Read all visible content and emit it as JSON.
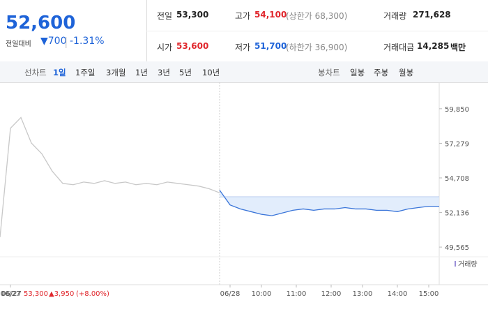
{
  "header": {
    "price": "52,600",
    "change_label": "전일대비",
    "change": "▼700",
    "change_pct": "-1.31%",
    "stats": [
      [
        "전일",
        "53,300",
        ""
      ],
      [
        "고가",
        "54,100",
        "(상한가 68,300)"
      ],
      [
        "거래량",
        "271,628",
        ""
      ],
      [
        "시가",
        "53,600",
        ""
      ],
      [
        "저가",
        "51,700",
        "(하한가 36,900)"
      ],
      [
        "거래대금",
        "14,285",
        "백만"
      ]
    ]
  },
  "tabs": {
    "line_label": "선차트",
    "line_tabs": [
      "1일",
      "1주일",
      "3개월",
      "1년",
      "3년",
      "5년",
      "10년"
    ],
    "candle_label": "봉차트",
    "candle_tabs": [
      "일봉",
      "주봉",
      "월봉"
    ]
  },
  "chart_data": {
    "type": "line",
    "x": [
      0,
      3,
      6,
      9,
      12,
      15,
      18,
      21,
      24,
      27,
      30,
      33,
      36,
      39,
      42,
      45,
      48,
      51,
      54,
      57,
      60,
      63,
      66,
      69,
      72,
      75,
      78,
      81,
      84,
      87,
      90,
      93,
      96,
      99,
      102,
      105,
      108,
      111,
      114,
      117,
      120,
      123,
      126
    ],
    "series": [
      {
        "name": "06/27",
        "color": "#c8c8c8",
        "values": [
          50300,
          58400,
          59200,
          57300,
          56500,
          55200,
          54300,
          54200,
          54400,
          54300,
          54500,
          54300,
          54400,
          54200,
          54300,
          54200,
          54400,
          54300,
          54200,
          54100,
          53900,
          53600,
          null,
          null,
          null,
          null,
          null,
          null,
          null,
          null,
          null,
          null,
          null,
          null,
          null,
          null,
          null,
          null,
          null,
          null,
          null,
          null,
          null
        ]
      },
      {
        "name": "06/28",
        "color": "#3a75d9",
        "values": [
          null,
          null,
          null,
          null,
          null,
          null,
          null,
          null,
          null,
          null,
          null,
          null,
          null,
          null,
          null,
          null,
          null,
          null,
          null,
          null,
          null,
          53800,
          52700,
          52400,
          52200,
          52000,
          51900,
          52100,
          52300,
          52400,
          52300,
          52400,
          52400,
          52500,
          52400,
          52400,
          52300,
          52300,
          52200,
          52400,
          52500,
          52600,
          52600
        ]
      }
    ],
    "baseline": 53300,
    "xlim": [
      0,
      126
    ],
    "xticks": [
      {
        "value": 3,
        "label": "06/27"
      },
      {
        "value": 66,
        "label": "06/28"
      },
      {
        "value": 75,
        "label": "10:00"
      },
      {
        "value": 85,
        "label": "11:00"
      },
      {
        "value": 95,
        "label": "12:00"
      },
      {
        "value": 104,
        "label": "13:00"
      },
      {
        "value": 114,
        "label": "14:00"
      },
      {
        "value": 123,
        "label": "15:00"
      }
    ],
    "ylim": [
      49000,
      61450
    ],
    "yticks": [
      {
        "value": 49565,
        "label": "49,565"
      },
      {
        "value": 52136,
        "label": "52,136"
      },
      {
        "value": 54708,
        "label": "54,708"
      },
      {
        "value": 57279,
        "label": "57,279"
      },
      {
        "value": 59850,
        "label": "59,850"
      }
    ],
    "volume_label": "거래량",
    "prev_day_note": {
      "date": "06/27",
      "close": "53,300",
      "change": "▲3,950",
      "pct": "(+8.00%)"
    }
  }
}
